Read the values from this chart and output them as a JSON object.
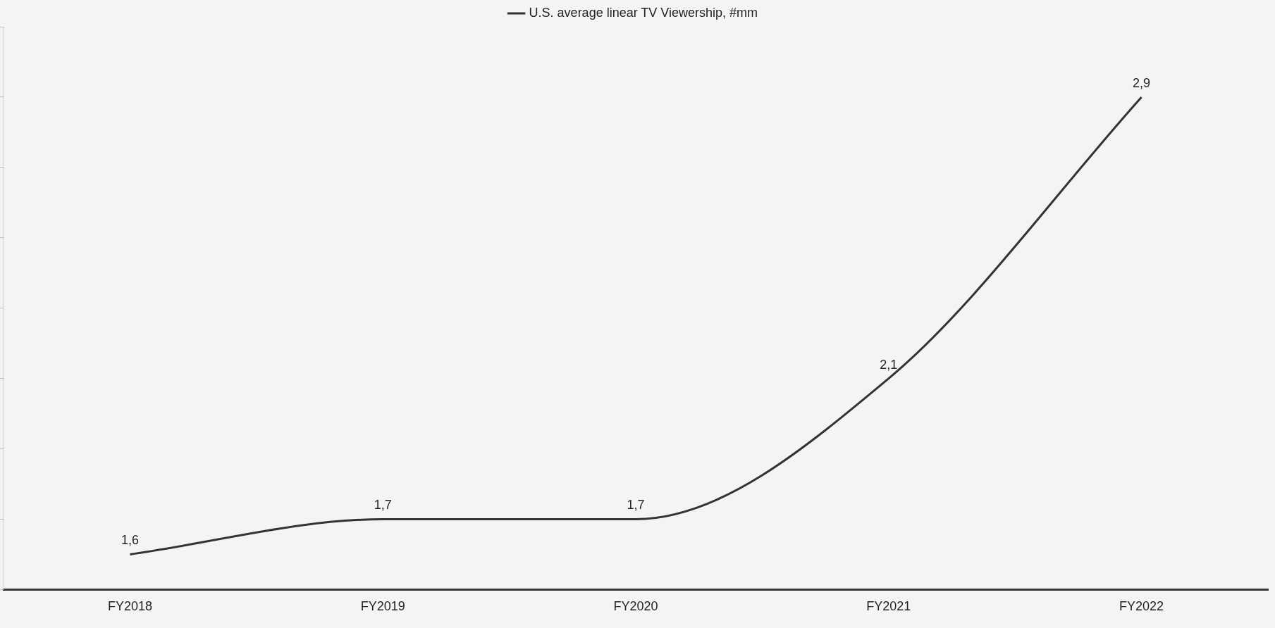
{
  "chart_data": {
    "type": "line",
    "categories": [
      "FY2018",
      "FY2019",
      "FY2020",
      "FY2021",
      "FY2022"
    ],
    "series": [
      {
        "name": "U.S. average linear TV Viewership, #mm",
        "color": "#333333",
        "values": [
          1.6,
          1.7,
          1.7,
          2.1,
          2.9
        ],
        "value_labels": [
          "1,6",
          "1,7",
          "1,7",
          "2,1",
          "2,9"
        ]
      }
    ],
    "ylim": [
      1.5,
      3.1
    ],
    "yticks": [
      {
        "value": 1.5,
        "label": null
      },
      {
        "value": 1.7,
        "label": null
      },
      {
        "value": 1.9,
        "label": null
      },
      {
        "value": 2.1,
        "label": null
      },
      {
        "value": 2.3,
        "label": null
      },
      {
        "value": 2.5,
        "label": null
      },
      {
        "value": 2.7,
        "label": null
      },
      {
        "value": 2.9,
        "label": null
      },
      {
        "value": 3.1,
        "label": null
      }
    ],
    "tick_labels": "x",
    "grid": false,
    "legend": "top",
    "marker": "none",
    "line_style": "solid"
  }
}
